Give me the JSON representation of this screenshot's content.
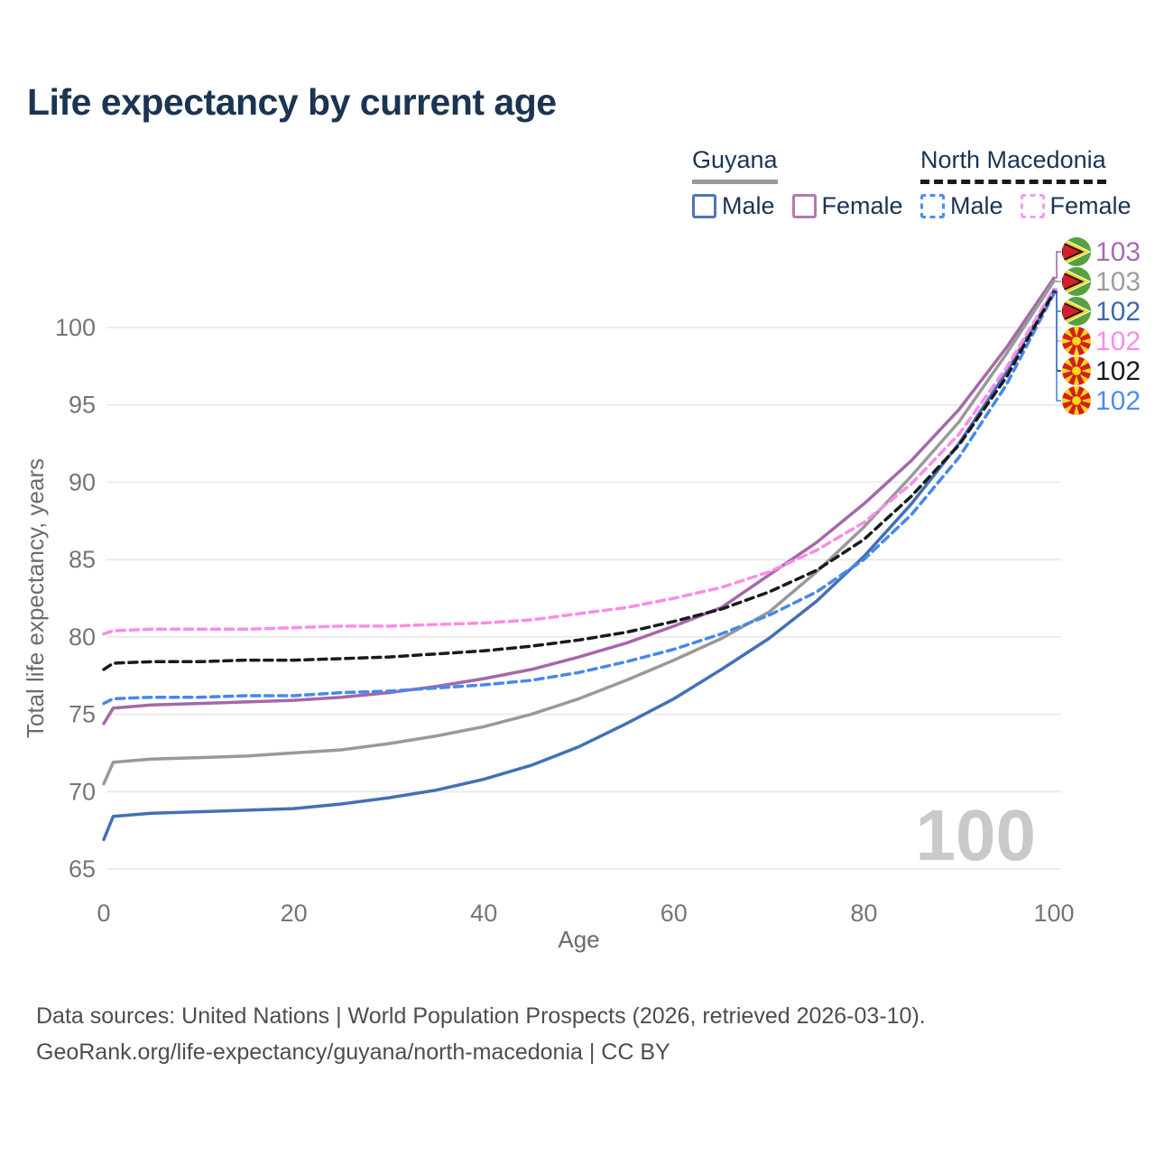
{
  "title": "Life expectancy by current age",
  "legend": {
    "groups": [
      {
        "name": "Guyana",
        "line_style": "solid",
        "underline_color": "#999999",
        "items": [
          {
            "label": "Male",
            "color": "#4f74b8"
          },
          {
            "label": "Female",
            "color": "#b279ae"
          }
        ]
      },
      {
        "name": "North Macedonia",
        "line_style": "dashed",
        "underline_color": "#1a1a1a",
        "items": [
          {
            "label": "Male",
            "color": "#4b8df5"
          },
          {
            "label": "Female",
            "color": "#fb9af0"
          }
        ]
      }
    ]
  },
  "chart_data": {
    "type": "line",
    "title": "Life expectancy by current age",
    "xlabel": "Age",
    "ylabel": "Total life expectancy, years",
    "xlim": [
      0,
      100
    ],
    "ylim": [
      65,
      100
    ],
    "xticks": [
      0,
      20,
      40,
      60,
      80,
      100
    ],
    "yticks": [
      65,
      70,
      75,
      80,
      85,
      90,
      95,
      100
    ],
    "grid": "horizontal",
    "gridline_color": "#ececec",
    "tick_color": "#757575",
    "x": [
      0,
      1,
      5,
      10,
      15,
      20,
      25,
      30,
      35,
      40,
      45,
      50,
      55,
      60,
      65,
      70,
      75,
      80,
      85,
      90,
      95,
      100
    ],
    "series": [
      {
        "name": "Guyana Male",
        "country": "Guyana",
        "sex": "Male",
        "color": "#4370b5",
        "dash": "solid",
        "values": [
          66.9,
          68.4,
          68.6,
          68.7,
          68.8,
          68.9,
          69.2,
          69.6,
          70.1,
          70.8,
          71.7,
          72.9,
          74.4,
          76.0,
          77.9,
          79.9,
          82.3,
          85.2,
          88.6,
          92.5,
          97.1,
          102.4
        ]
      },
      {
        "name": "Guyana Female",
        "country": "Guyana",
        "sex": "Female",
        "color": "#a568a8",
        "dash": "solid",
        "values": [
          74.4,
          75.4,
          75.6,
          75.7,
          75.8,
          75.9,
          76.1,
          76.4,
          76.8,
          77.3,
          77.9,
          78.7,
          79.6,
          80.7,
          81.9,
          84.0,
          86.1,
          88.6,
          91.4,
          94.7,
          98.7,
          103.2
        ]
      },
      {
        "name": "Guyana Both sexes",
        "country": "Guyana",
        "sex": "Both",
        "color": "#999999",
        "dash": "solid",
        "values": [
          70.5,
          71.9,
          72.1,
          72.2,
          72.3,
          72.5,
          72.7,
          73.1,
          73.6,
          74.2,
          75.0,
          76.0,
          77.2,
          78.5,
          79.9,
          81.6,
          84.2,
          87.1,
          90.4,
          93.9,
          98.3,
          103.0
        ]
      },
      {
        "name": "North Macedonia Male",
        "country": "North Macedonia",
        "sex": "Male",
        "color": "#4688ec",
        "dash": "dashed",
        "values": [
          75.7,
          76.0,
          76.1,
          76.1,
          76.2,
          76.2,
          76.4,
          76.5,
          76.7,
          76.9,
          77.2,
          77.7,
          78.4,
          79.2,
          80.2,
          81.4,
          82.9,
          85.0,
          87.9,
          91.6,
          96.3,
          102.2
        ]
      },
      {
        "name": "North Macedonia Female",
        "country": "North Macedonia",
        "sex": "Female",
        "color": "#fb8ce8",
        "dash": "dashed",
        "values": [
          80.2,
          80.4,
          80.5,
          80.5,
          80.5,
          80.6,
          80.7,
          80.7,
          80.8,
          80.9,
          81.1,
          81.5,
          81.9,
          82.5,
          83.2,
          84.2,
          85.6,
          87.4,
          89.9,
          93.1,
          97.4,
          102.5
        ]
      },
      {
        "name": "North Macedonia Both sexes",
        "country": "North Macedonia",
        "sex": "Both",
        "color": "#1a1a1a",
        "dash": "dashed",
        "values": [
          77.9,
          78.3,
          78.4,
          78.4,
          78.5,
          78.5,
          78.6,
          78.7,
          78.9,
          79.1,
          79.4,
          79.8,
          80.3,
          81.0,
          81.8,
          82.9,
          84.3,
          86.3,
          89.1,
          92.4,
          96.8,
          102.3
        ]
      }
    ],
    "end_rows": [
      {
        "series": "Guyana Female",
        "flag": "guyana-flag-icon",
        "value": "103",
        "color": "#a96cb3"
      },
      {
        "series": "Guyana Both sexes",
        "flag": "guyana-flag-icon",
        "value": "103",
        "color": "#9e9e9e"
      },
      {
        "series": "Guyana Male",
        "flag": "guyana-flag-icon",
        "value": "102",
        "color": "#3f67b1"
      },
      {
        "series": "North Macedonia Female",
        "flag": "north-macedonia-flag-icon",
        "value": "102",
        "color": "#fb8ce8"
      },
      {
        "series": "North Macedonia Both sexes",
        "flag": "north-macedonia-flag-icon",
        "value": "102",
        "color": "#1a1a1a"
      },
      {
        "series": "North Macedonia Male",
        "flag": "north-macedonia-flag-icon",
        "value": "102",
        "color": "#4b8df5"
      }
    ]
  },
  "watermark": "100",
  "footer": {
    "line1": "Data sources: United Nations | World Population Prospects (2026, retrieved 2026-03-10).",
    "line2": "GeoRank.org/life-expectancy/guyana/north-macedonia | CC BY"
  }
}
